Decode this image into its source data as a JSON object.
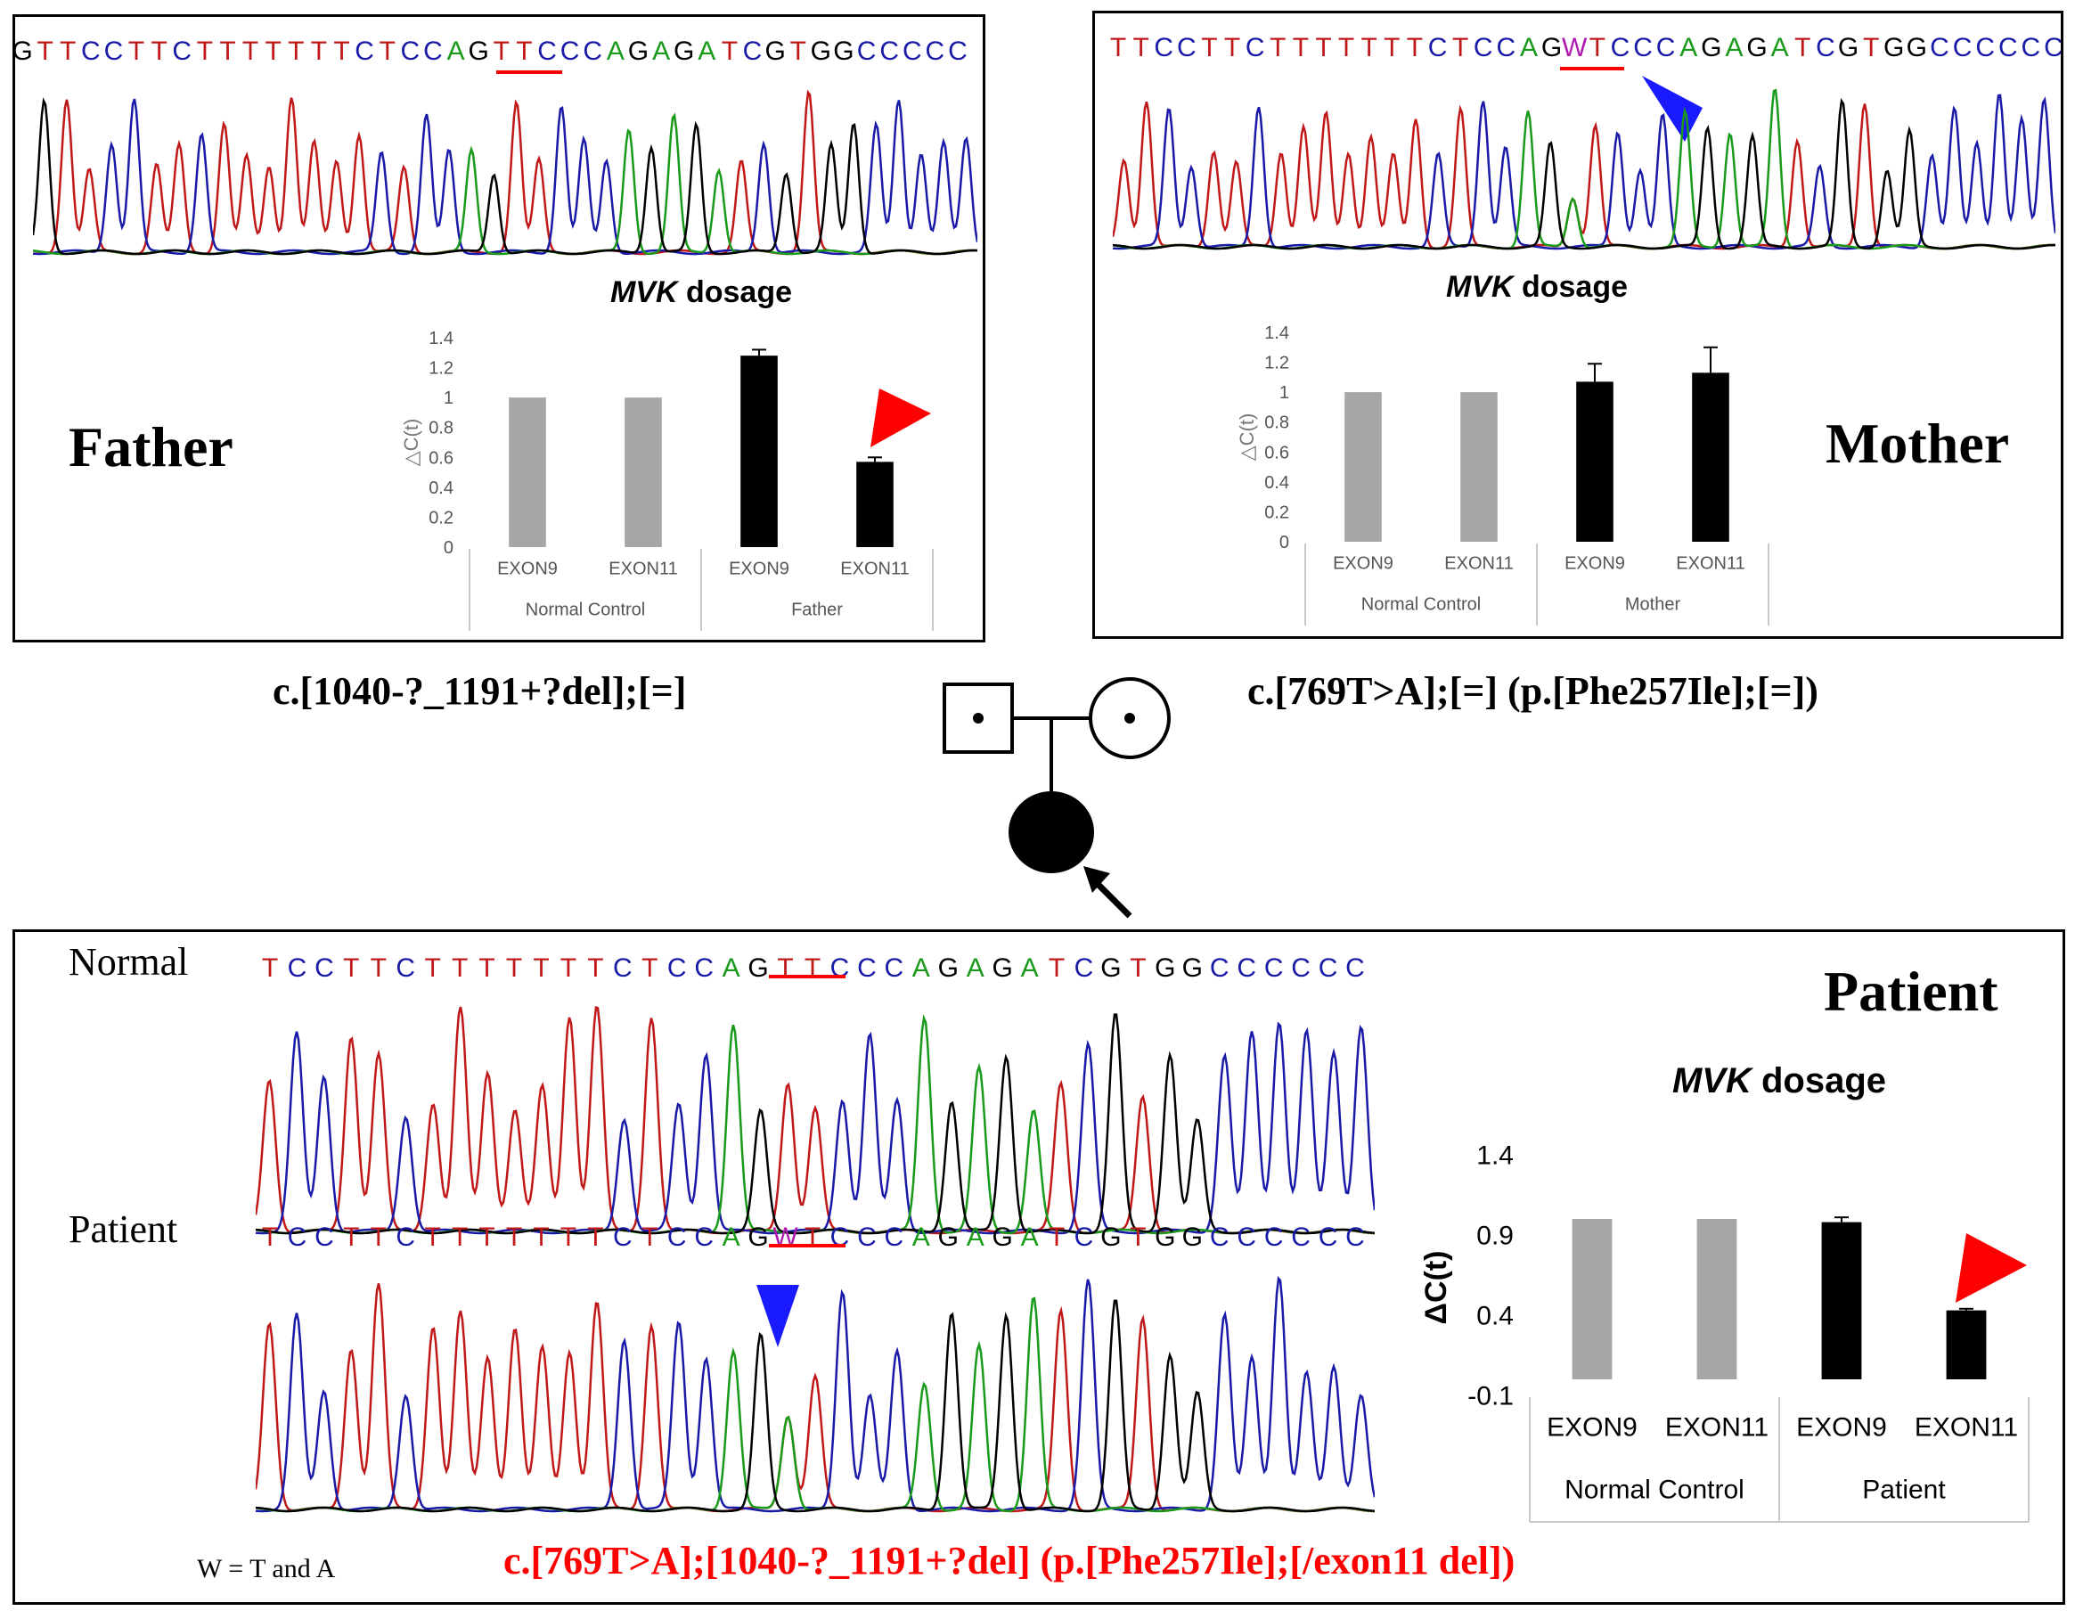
{
  "colors": {
    "A": "#1a9a1a",
    "C": "#1a1aa8",
    "G": "#000000",
    "T": "#c01818",
    "W": "#b01ab0",
    "control_bar": "#a6a6a6",
    "sample_bar": "#000000",
    "arrow_red": "#ff0000",
    "arrow_blue": "#1a1aff"
  },
  "father": {
    "name": "Father",
    "sequence": "GTTCCTTCTTTTTTTCTCCAGTTCCCAGAGATCGTGGCCCCC",
    "variant": "c.[1040-?_1191+?del];[=]"
  },
  "mother": {
    "name": "Mother",
    "sequence": "TTCCTTCTTTTTTTCTCCAGWTCCCAGAGATCGTGGCCCCCC",
    "variant": "c.[769T>A];[=] (p.[Phe257Ile];[=])"
  },
  "patient": {
    "name": "Patient",
    "normal_label": "Normal",
    "patient_label": "Patient",
    "normal_sequence": "TCCTTCTTTTTTTCTCCAGTTCCCAGAGATCGTGGCCCCCC",
    "patient_sequence": "TCCTTCTTTTTTTCTCCAGWTCCCAGAGATCGTGGCCCCCC",
    "legend": "W = T and A",
    "variant": "c.[769T>A];[1040-?_1191+?del] (p.[Phe257Ile];[/exon11 del])"
  },
  "chart_data": [
    {
      "type": "bar",
      "title_italic": "MVK",
      "title_rest": " dosage",
      "ylabel": "△C(t)",
      "ylim": [
        0,
        1.4
      ],
      "yticks": [
        "0",
        "0.2",
        "0.4",
        "0.6",
        "0.8",
        "1",
        "1.2",
        "1.4"
      ],
      "categories": [
        "EXON9",
        "EXON11",
        "EXON9",
        "EXON11"
      ],
      "groups": [
        "Normal Control",
        "Father"
      ],
      "values": [
        1.0,
        1.0,
        1.28,
        0.57
      ],
      "errors": [
        0,
        0,
        0.04,
        0.03
      ]
    },
    {
      "type": "bar",
      "title_italic": "MVK",
      "title_rest": " dosage",
      "ylabel": "△C(t)",
      "ylim": [
        0,
        1.4
      ],
      "yticks": [
        "0",
        "0.2",
        "0.4",
        "0.6",
        "0.8",
        "1",
        "1.2",
        "1.4"
      ],
      "categories": [
        "EXON9",
        "EXON11",
        "EXON9",
        "EXON11"
      ],
      "groups": [
        "Normal Control",
        "Mother"
      ],
      "values": [
        1.0,
        1.0,
        1.07,
        1.13
      ],
      "errors": [
        0,
        0,
        0.12,
        0.17
      ]
    },
    {
      "type": "bar",
      "title_italic": "MVK",
      "title_rest": " dosage",
      "ylabel": "ΔC(t)",
      "ylim": [
        -0.1,
        1.4
      ],
      "yticks": [
        "-0.1",
        "0.4",
        "0.9",
        "1.4"
      ],
      "categories": [
        "EXON9",
        "EXON11",
        "EXON9",
        "EXON11"
      ],
      "groups": [
        "Normal Control",
        "Patient"
      ],
      "values": [
        1.0,
        1.0,
        0.98,
        0.43
      ],
      "errors": [
        0,
        0,
        0.03,
        0.01
      ]
    }
  ]
}
